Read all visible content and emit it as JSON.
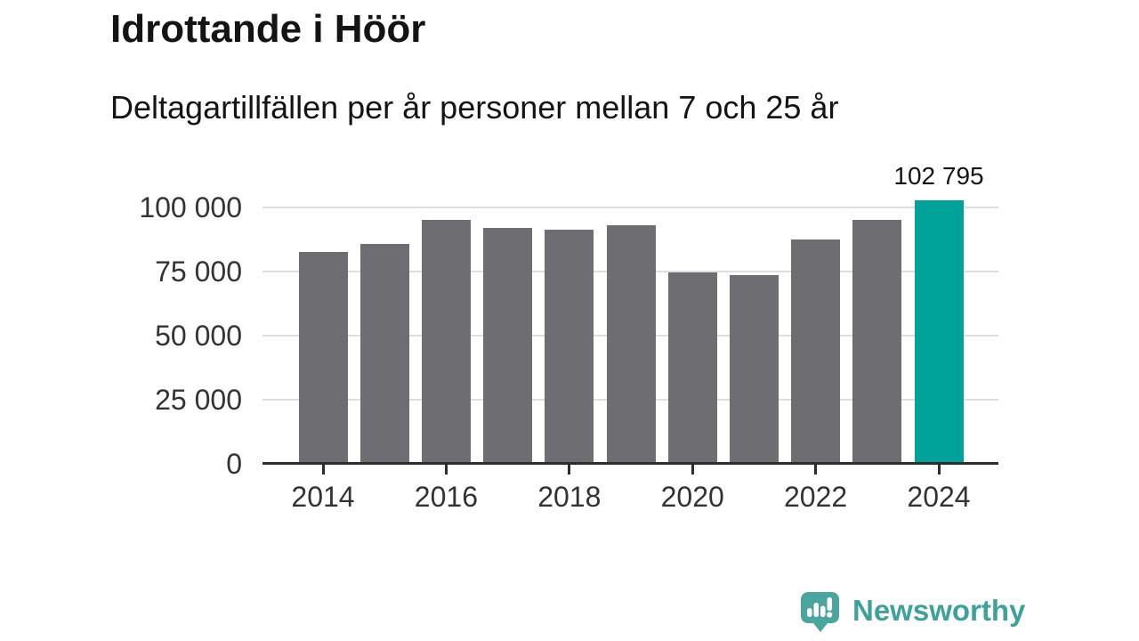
{
  "title": "Idrottande i Höör",
  "subtitle": "Deltagartillfällen per år personer mellan 7 och 25 år",
  "footer": {
    "brand": "Newsworthy",
    "logo_icon": "newsworthy-speech-bubble-barchart-icon"
  },
  "colors": {
    "bar": "#6e6e72",
    "highlight": "#00a39a",
    "axis": "#2d2d2d",
    "gridline": "#dedede",
    "brand_teal": "#3fa29a",
    "text": "#141414",
    "axis_text": "#333333"
  },
  "chart_data": {
    "type": "bar",
    "title": "Idrottande i Höör",
    "subtitle": "Deltagartillfällen per år personer mellan 7 och 25 år",
    "categories": [
      "2014",
      "2015",
      "2016",
      "2017",
      "2018",
      "2019",
      "2020",
      "2021",
      "2022",
      "2023",
      "2024"
    ],
    "values": [
      82500,
      85700,
      95200,
      92000,
      91300,
      92900,
      74800,
      73500,
      87400,
      95000,
      102795
    ],
    "highlight_index": 10,
    "annotation": {
      "label": "102 795",
      "category": "2024",
      "value": 102795
    },
    "ylim": [
      0,
      100000
    ],
    "yticks": {
      "values": [
        0,
        25000,
        50000,
        75000,
        100000
      ],
      "labels": [
        "0",
        "25 000",
        "50 000",
        "75 000",
        "100 000"
      ]
    },
    "xtick_labels": [
      "2014",
      "2016",
      "2018",
      "2020",
      "2022",
      "2024"
    ],
    "grid": "horizontal",
    "legend": "none"
  }
}
